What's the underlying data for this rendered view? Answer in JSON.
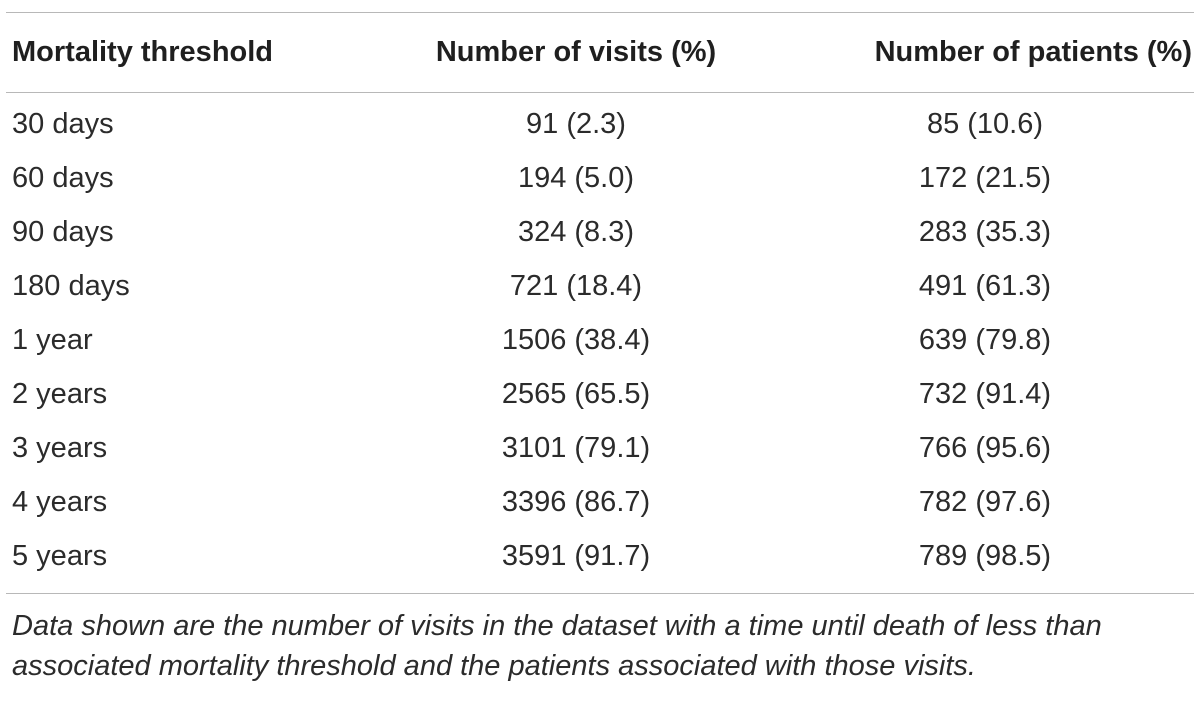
{
  "table": {
    "headers": [
      "Mortality threshold",
      "Number of visits (%)",
      "Number of patients (%)"
    ],
    "rows": [
      {
        "threshold": "30 days",
        "visits": "91 (2.3)",
        "patients": "85 (10.6)"
      },
      {
        "threshold": "60 days",
        "visits": "194 (5.0)",
        "patients": "172 (21.5)"
      },
      {
        "threshold": "90 days",
        "visits": "324 (8.3)",
        "patients": "283 (35.3)"
      },
      {
        "threshold": "180 days",
        "visits": "721 (18.4)",
        "patients": "491 (61.3)"
      },
      {
        "threshold": "1 year",
        "visits": "1506 (38.4)",
        "patients": "639 (79.8)"
      },
      {
        "threshold": "2 years",
        "visits": "2565 (65.5)",
        "patients": "732 (91.4)"
      },
      {
        "threshold": "3 years",
        "visits": "3101 (79.1)",
        "patients": "766 (95.6)"
      },
      {
        "threshold": "4 years",
        "visits": "3396 (86.7)",
        "patients": "782 (97.6)"
      },
      {
        "threshold": "5 years",
        "visits": "3591 (91.7)",
        "patients": "789 (98.5)"
      }
    ],
    "footnote": "Data shown are the number of visits in the dataset with a time until death of less than associated mortality threshold and the patients associated with those visits."
  }
}
